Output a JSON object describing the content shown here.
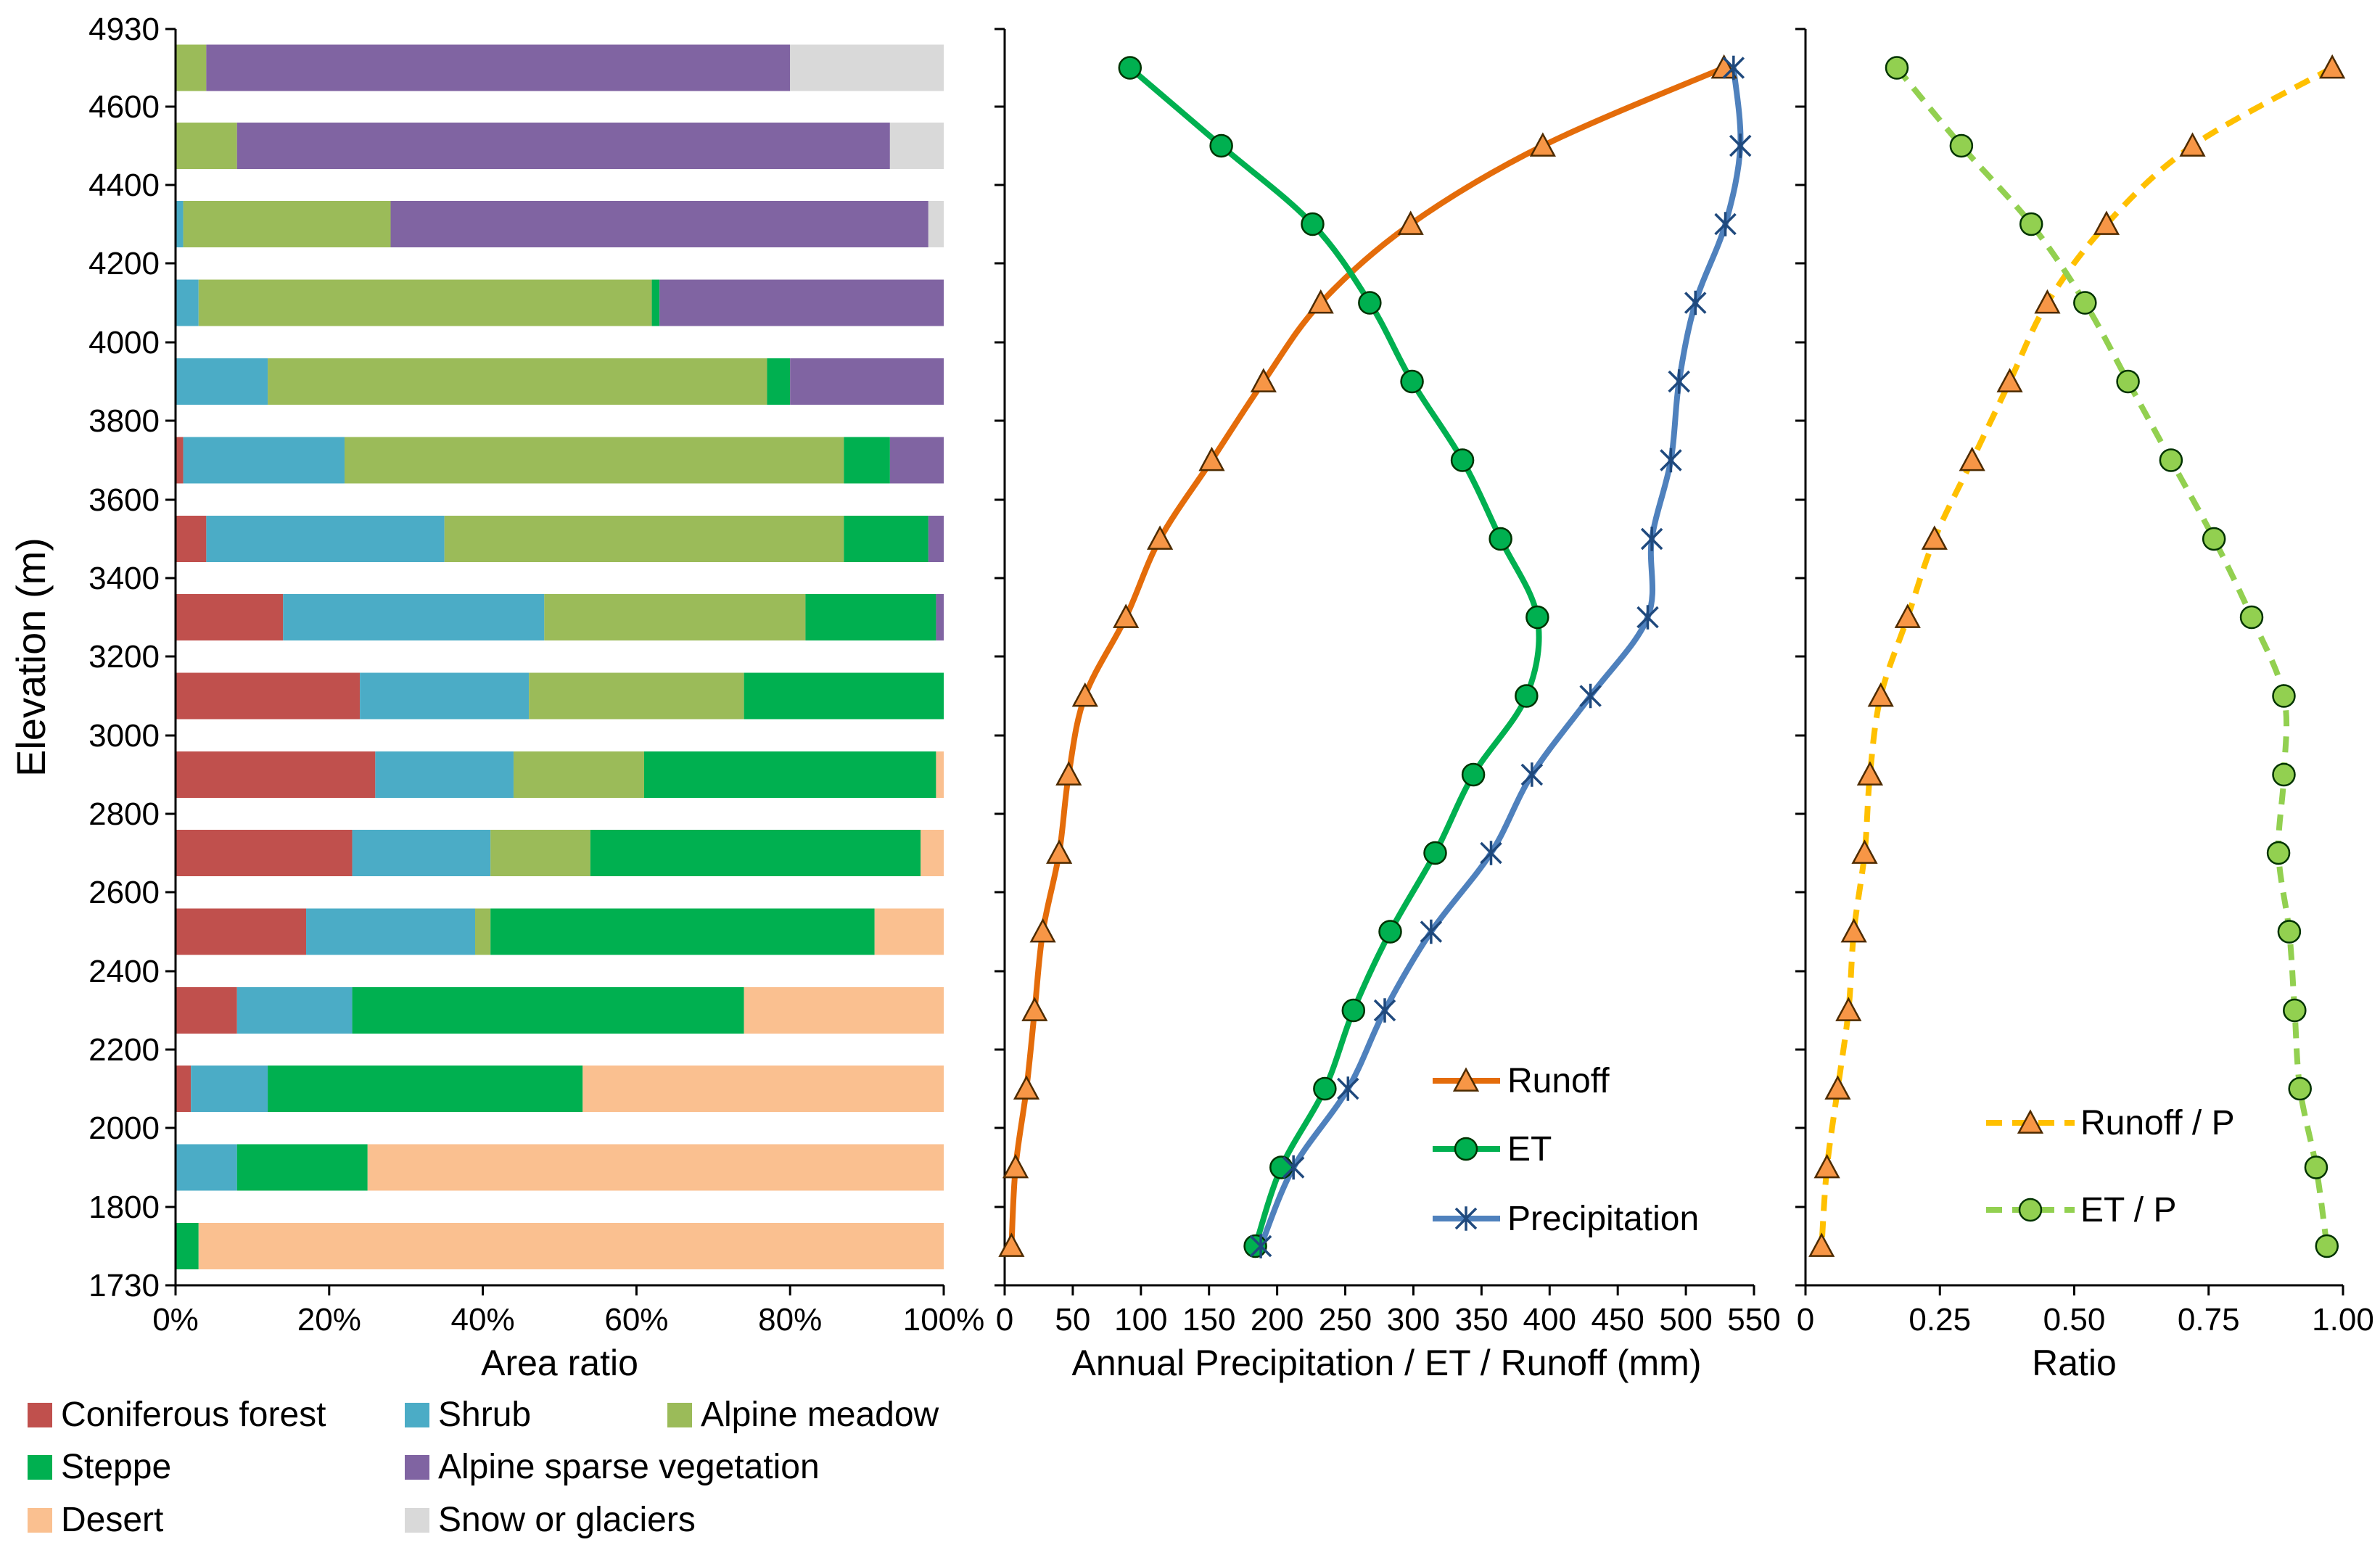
{
  "figure": {
    "y_axis_title": "Elevation (m)",
    "y_ticks": [
      "4930",
      "4600",
      "4400",
      "4200",
      "4000",
      "3800",
      "3600",
      "3400",
      "3200",
      "3000",
      "2800",
      "2600",
      "2400",
      "2200",
      "2000",
      "1800",
      "1730"
    ],
    "y_tick_values": [
      4930,
      4600,
      4400,
      4200,
      4000,
      3800,
      3600,
      3400,
      3200,
      3000,
      2800,
      2600,
      2400,
      2200,
      2000,
      1800,
      1730
    ],
    "panel_a_xticks": [
      "0%",
      "20%",
      "40%",
      "60%",
      "80%",
      "100%"
    ],
    "panel_a_xlabel": "Area ratio",
    "panel_b_xticks": [
      "0",
      "50",
      "100",
      "150",
      "200",
      "250",
      "300",
      "350",
      "400",
      "450",
      "500",
      "550"
    ],
    "panel_b_xlabel": "Annual Precipitation / ET / Runoff (mm)",
    "panel_c_xticks": [
      "0",
      "0.25",
      "0.50",
      "0.75",
      "1.00"
    ],
    "panel_c_xlabel": "Ratio"
  },
  "chart_data": [
    {
      "type": "bar",
      "stacked": true,
      "orientation": "horizontal",
      "xlabel": "Area ratio",
      "ylabel": "Elevation (m)",
      "xlim": [
        0,
        100
      ],
      "ylim": [
        1730,
        4930
      ],
      "y": [
        4800,
        4600,
        4400,
        4200,
        4000,
        3800,
        3600,
        3400,
        3200,
        3000,
        2800,
        2600,
        2400,
        2200,
        2000,
        1800
      ],
      "series": [
        {
          "name": "Coniferous forest",
          "color": "#c0504d",
          "values": [
            0,
            0,
            0,
            0,
            0,
            1,
            4,
            14,
            24,
            26,
            23,
            17,
            8,
            2,
            0,
            0
          ]
        },
        {
          "name": "Shrub",
          "color": "#4bacc6",
          "values": [
            0,
            0,
            1,
            3,
            12,
            21,
            31,
            34,
            22,
            18,
            18,
            22,
            15,
            10,
            8,
            0
          ]
        },
        {
          "name": "Alpine meadow",
          "color": "#9bbb59",
          "values": [
            4,
            8,
            27,
            59,
            65,
            65,
            52,
            34,
            28,
            17,
            13,
            2,
            0,
            0,
            0,
            0
          ]
        },
        {
          "name": "Steppe",
          "color": "#00b050",
          "values": [
            0,
            0,
            0,
            1,
            3,
            6,
            11,
            17,
            26,
            38,
            43,
            50,
            51,
            41,
            17,
            3
          ]
        },
        {
          "name": "Alpine sparse vegetation",
          "color": "#8064a2",
          "values": [
            76,
            85,
            70,
            37,
            20,
            7,
            2,
            1,
            0,
            0,
            0,
            0,
            0,
            0,
            0,
            0
          ]
        },
        {
          "name": "Desert",
          "color": "#fac090",
          "values": [
            0,
            0,
            0,
            0,
            0,
            0,
            0,
            0,
            0,
            1,
            3,
            9,
            26,
            47,
            75,
            97
          ]
        },
        {
          "name": "Snow or glaciers",
          "color": "#d9d9d9",
          "values": [
            20,
            7,
            2,
            0,
            0,
            0,
            0,
            0,
            0,
            0,
            0,
            0,
            0,
            0,
            0,
            0
          ]
        }
      ]
    },
    {
      "type": "line",
      "xlabel": "Annual Precipitation / ET / Runoff (mm)",
      "ylabel": "Elevation (m)",
      "xlim": [
        0,
        550
      ],
      "ylim": [
        1730,
        4930
      ],
      "y": [
        4800,
        4600,
        4400,
        4200,
        4000,
        3800,
        3600,
        3400,
        3200,
        3000,
        2800,
        2600,
        2400,
        2200,
        2000,
        1800
      ],
      "series": [
        {
          "name": "Runoff",
          "color": "#e46c0a",
          "marker": "triangle",
          "marker_fill": "#f79646",
          "values": [
            528,
            395,
            298,
            232,
            190,
            152,
            114,
            89,
            59,
            47,
            40,
            28,
            22,
            16,
            8,
            5
          ]
        },
        {
          "name": "ET",
          "color": "#00b050",
          "marker": "circle",
          "marker_fill": "#00b050",
          "values": [
            92,
            159,
            226,
            268,
            299,
            336,
            364,
            391,
            383,
            344,
            316,
            283,
            256,
            235,
            203,
            184
          ]
        },
        {
          "name": "Precipitation",
          "color": "#4f81bd",
          "marker": "star",
          "marker_fill": "#1f497d",
          "values": [
            535,
            540,
            529,
            507,
            495,
            489,
            475,
            472,
            430,
            387,
            357,
            313,
            279,
            252,
            212,
            188
          ]
        }
      ]
    },
    {
      "type": "line",
      "xlabel": "Ratio",
      "ylabel": "Elevation (m)",
      "xlim": [
        0,
        1
      ],
      "ylim": [
        1730,
        4930
      ],
      "y": [
        4800,
        4600,
        4400,
        4200,
        4000,
        3800,
        3600,
        3400,
        3200,
        3000,
        2800,
        2600,
        2400,
        2200,
        2000,
        1800
      ],
      "series": [
        {
          "name": "Runoff / P",
          "color": "#ffc000",
          "marker": "triangle",
          "marker_fill": "#f79646",
          "dashed": true,
          "values": [
            0.98,
            0.72,
            0.56,
            0.45,
            0.38,
            0.31,
            0.24,
            0.19,
            0.14,
            0.12,
            0.11,
            0.09,
            0.08,
            0.06,
            0.04,
            0.03
          ]
        },
        {
          "name": "ET / P",
          "color": "#92d050",
          "marker": "circle",
          "marker_fill": "#92d050",
          "dashed": true,
          "values": [
            0.17,
            0.29,
            0.42,
            0.52,
            0.6,
            0.68,
            0.76,
            0.83,
            0.89,
            0.89,
            0.88,
            0.9,
            0.91,
            0.92,
            0.95,
            0.97
          ]
        }
      ]
    }
  ]
}
